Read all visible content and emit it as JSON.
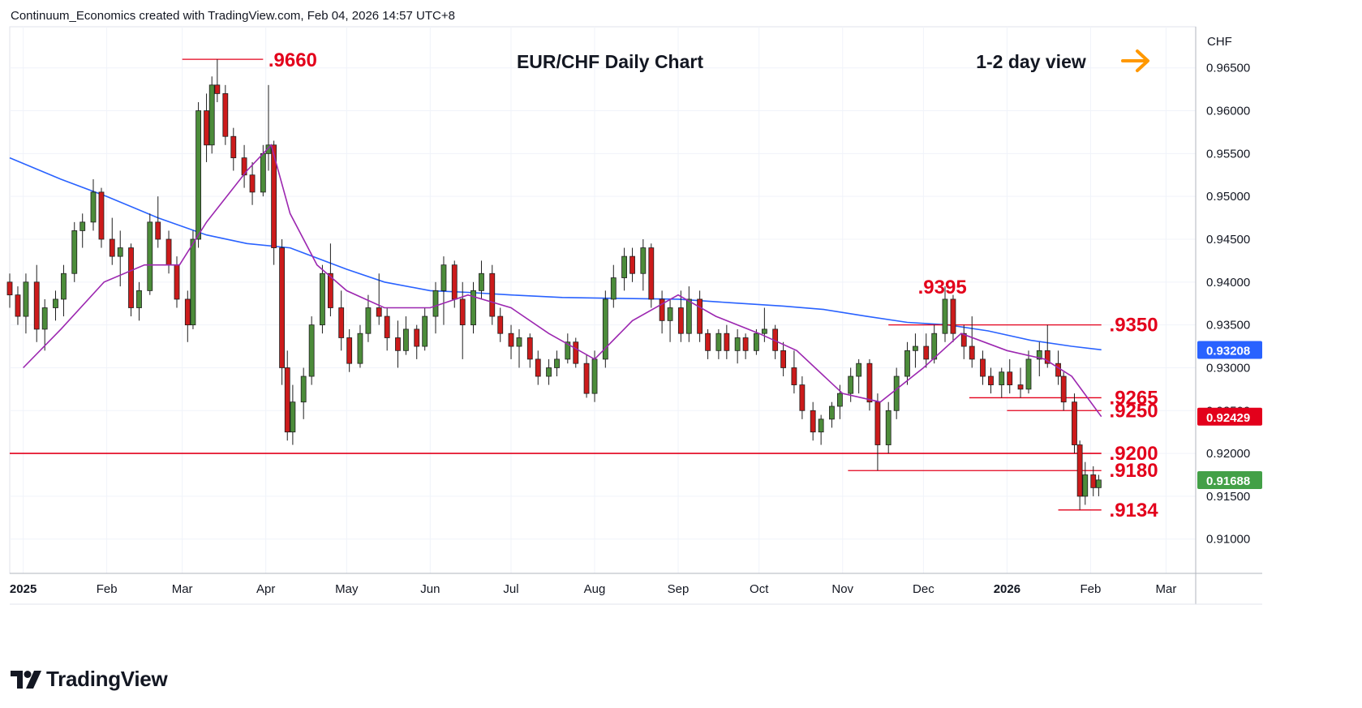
{
  "header": {
    "credit": "Continuum_Economics created with TradingView.com, Feb 04, 2026 14:57 UTC+8"
  },
  "footer": {
    "brand": "TradingView"
  },
  "colors": {
    "bull": "#4c8c3a",
    "bear": "#cc1b1b",
    "ma_fast": "#9c27b0",
    "ma_slow": "#2962ff",
    "level": "#e3001b",
    "arrow": "#ff9800",
    "badge": "#2962ff",
    "badge_red": "#e3001b",
    "badge_green": "#43a047"
  },
  "chart_data": {
    "type": "candlestick",
    "title": "EUR/CHF Daily Chart",
    "view_label": "1-2 day view",
    "view_icon": "arrow-right-icon",
    "currency_label": "CHF",
    "x_range": [
      "2024-12-27",
      "2026-03-12"
    ],
    "ylim": [
      0.906,
      0.9698
    ],
    "grid": true,
    "x_ticks": [
      {
        "date": "2025-01-01",
        "label": "2025",
        "bold": true
      },
      {
        "date": "2025-02-01",
        "label": "Feb"
      },
      {
        "date": "2025-03-01",
        "label": "Mar"
      },
      {
        "date": "2025-04-01",
        "label": "Apr"
      },
      {
        "date": "2025-05-01",
        "label": "May"
      },
      {
        "date": "2025-06-01",
        "label": "Jun"
      },
      {
        "date": "2025-07-01",
        "label": "Jul"
      },
      {
        "date": "2025-08-01",
        "label": "Aug"
      },
      {
        "date": "2025-09-01",
        "label": "Sep"
      },
      {
        "date": "2025-10-01",
        "label": "Oct"
      },
      {
        "date": "2025-11-01",
        "label": "Nov"
      },
      {
        "date": "2025-12-01",
        "label": "Dec"
      },
      {
        "date": "2026-01-01",
        "label": "2026",
        "bold": true
      },
      {
        "date": "2026-02-01",
        "label": "Feb"
      },
      {
        "date": "2026-03-01",
        "label": "Mar"
      }
    ],
    "y_ticks": [
      {
        "value": 0.965,
        "label": "0.96500"
      },
      {
        "value": 0.96,
        "label": "0.96000"
      },
      {
        "value": 0.955,
        "label": "0.95500"
      },
      {
        "value": 0.95,
        "label": "0.95000"
      },
      {
        "value": 0.945,
        "label": "0.94500"
      },
      {
        "value": 0.94,
        "label": "0.94000"
      },
      {
        "value": 0.935,
        "label": "0.93500"
      },
      {
        "value": 0.93,
        "label": "0.93000"
      },
      {
        "value": 0.925,
        "label": "0.92500"
      },
      {
        "value": 0.92,
        "label": "0.92000"
      },
      {
        "value": 0.915,
        "label": "0.91500"
      },
      {
        "value": 0.91,
        "label": "0.91000"
      }
    ],
    "price_badges": [
      {
        "value": 0.93208,
        "label": "0.93208",
        "color": "#2962ff"
      },
      {
        "value": 0.92429,
        "label": "0.92429",
        "color": "#e3001b"
      },
      {
        "value": 0.91688,
        "label": "0.91688",
        "color": "#43a047"
      }
    ],
    "levels": [
      {
        "value": 0.966,
        "label": ".9660",
        "from": "2025-03-01",
        "to": "2025-03-31",
        "label_date": "2025-04-11"
      },
      {
        "value": 0.9395,
        "label": ".9395",
        "from": null,
        "to": null,
        "label_date": "2025-12-08"
      },
      {
        "value": 0.935,
        "label": ".9350",
        "from": "2025-11-18",
        "to": "2026-02-05",
        "label_date": "2026-02-17"
      },
      {
        "value": 0.9265,
        "label": ".9265",
        "from": "2025-12-18",
        "to": "2026-02-05",
        "label_date": "2026-02-17"
      },
      {
        "value": 0.925,
        "label": ".9250",
        "from": "2026-01-01",
        "to": "2026-02-05",
        "label_date": "2026-02-17"
      },
      {
        "value": 0.92,
        "label": ".9200",
        "from": "2024-12-27",
        "to": "2026-02-05",
        "label_date": "2026-02-17"
      },
      {
        "value": 0.918,
        "label": ".9180",
        "from": "2025-11-03",
        "to": "2026-02-05",
        "label_date": "2026-02-17"
      },
      {
        "value": 0.9134,
        "label": ".9134",
        "from": "2026-01-20",
        "to": "2026-02-05",
        "label_date": "2026-02-17"
      }
    ],
    "ma_fast": [
      [
        "2025-01-01",
        0.93
      ],
      [
        "2025-01-15",
        0.9345
      ],
      [
        "2025-01-31",
        0.94
      ],
      [
        "2025-02-15",
        0.942
      ],
      [
        "2025-02-28",
        0.942
      ],
      [
        "2025-03-10",
        0.947
      ],
      [
        "2025-03-25",
        0.953
      ],
      [
        "2025-04-03",
        0.956
      ],
      [
        "2025-04-10",
        0.948
      ],
      [
        "2025-04-20",
        0.942
      ],
      [
        "2025-05-01",
        0.939
      ],
      [
        "2025-05-15",
        0.937
      ],
      [
        "2025-06-01",
        0.937
      ],
      [
        "2025-06-15",
        0.9385
      ],
      [
        "2025-07-01",
        0.937
      ],
      [
        "2025-07-15",
        0.934
      ],
      [
        "2025-08-01",
        0.931
      ],
      [
        "2025-08-15",
        0.9355
      ],
      [
        "2025-09-01",
        0.9385
      ],
      [
        "2025-09-15",
        0.936
      ],
      [
        "2025-10-01",
        0.934
      ],
      [
        "2025-10-15",
        0.932
      ],
      [
        "2025-11-01",
        0.927
      ],
      [
        "2025-11-15",
        0.926
      ],
      [
        "2025-12-01",
        0.93
      ],
      [
        "2025-12-15",
        0.934
      ],
      [
        "2026-01-01",
        0.932
      ],
      [
        "2026-01-15",
        0.931
      ],
      [
        "2026-01-25",
        0.929
      ],
      [
        "2026-02-05",
        0.9243
      ]
    ],
    "ma_slow": [
      [
        "2024-12-27",
        0.9545
      ],
      [
        "2025-01-15",
        0.952
      ],
      [
        "2025-02-01",
        0.95
      ],
      [
        "2025-02-20",
        0.9475
      ],
      [
        "2025-03-10",
        0.9455
      ],
      [
        "2025-03-25",
        0.9445
      ],
      [
        "2025-04-10",
        0.944
      ],
      [
        "2025-05-01",
        0.9415
      ],
      [
        "2025-05-15",
        0.94
      ],
      [
        "2025-06-01",
        0.939
      ],
      [
        "2025-06-15",
        0.9388
      ],
      [
        "2025-07-01",
        0.9385
      ],
      [
        "2025-07-20",
        0.9382
      ],
      [
        "2025-08-10",
        0.9381
      ],
      [
        "2025-09-01",
        0.938
      ],
      [
        "2025-09-20",
        0.9376
      ],
      [
        "2025-10-10",
        0.9372
      ],
      [
        "2025-10-25",
        0.9368
      ],
      [
        "2025-11-10",
        0.936
      ],
      [
        "2025-11-25",
        0.9353
      ],
      [
        "2025-12-10",
        0.935
      ],
      [
        "2025-12-25",
        0.9343
      ],
      [
        "2026-01-10",
        0.9332
      ],
      [
        "2026-01-25",
        0.9325
      ],
      [
        "2026-02-05",
        0.9321
      ]
    ],
    "candles": [
      [
        "2024-12-27",
        0.94,
        0.941,
        0.937,
        0.9385
      ],
      [
        "2024-12-30",
        0.9385,
        0.9395,
        0.935,
        0.936
      ],
      [
        "2025-01-02",
        0.936,
        0.941,
        0.934,
        0.94
      ],
      [
        "2025-01-06",
        0.94,
        0.942,
        0.933,
        0.9345
      ],
      [
        "2025-01-09",
        0.9345,
        0.938,
        0.932,
        0.937
      ],
      [
        "2025-01-13",
        0.937,
        0.939,
        0.9355,
        0.938
      ],
      [
        "2025-01-16",
        0.938,
        0.942,
        0.936,
        0.941
      ],
      [
        "2025-01-20",
        0.941,
        0.947,
        0.94,
        0.946
      ],
      [
        "2025-01-23",
        0.946,
        0.948,
        0.944,
        0.947
      ],
      [
        "2025-01-27",
        0.947,
        0.952,
        0.946,
        0.9505
      ],
      [
        "2025-01-30",
        0.9505,
        0.951,
        0.944,
        0.945
      ],
      [
        "2025-02-03",
        0.945,
        0.9475,
        0.942,
        0.943
      ],
      [
        "2025-02-06",
        0.943,
        0.946,
        0.9395,
        0.944
      ],
      [
        "2025-02-10",
        0.944,
        0.9445,
        0.936,
        0.937
      ],
      [
        "2025-02-13",
        0.937,
        0.94,
        0.9355,
        0.939
      ],
      [
        "2025-02-17",
        0.939,
        0.948,
        0.9385,
        0.947
      ],
      [
        "2025-02-20",
        0.947,
        0.95,
        0.944,
        0.945
      ],
      [
        "2025-02-24",
        0.945,
        0.946,
        0.941,
        0.942
      ],
      [
        "2025-02-27",
        0.942,
        0.943,
        0.937,
        0.938
      ],
      [
        "2025-03-03",
        0.938,
        0.939,
        0.933,
        0.935
      ],
      [
        "2025-03-05",
        0.935,
        0.946,
        0.9345,
        0.945
      ],
      [
        "2025-03-07",
        0.945,
        0.961,
        0.944,
        0.96
      ],
      [
        "2025-03-10",
        0.96,
        0.962,
        0.954,
        0.956
      ],
      [
        "2025-03-12",
        0.956,
        0.964,
        0.955,
        0.963
      ],
      [
        "2025-03-14",
        0.963,
        0.966,
        0.961,
        0.962
      ],
      [
        "2025-03-17",
        0.962,
        0.963,
        0.956,
        0.957
      ],
      [
        "2025-03-20",
        0.957,
        0.958,
        0.953,
        0.9545
      ],
      [
        "2025-03-24",
        0.9545,
        0.956,
        0.951,
        0.9525
      ],
      [
        "2025-03-27",
        0.9525,
        0.954,
        0.949,
        0.9505
      ],
      [
        "2025-03-31",
        0.9505,
        0.956,
        0.95,
        0.955
      ],
      [
        "2025-04-02",
        0.955,
        0.963,
        0.953,
        0.956
      ],
      [
        "2025-04-04",
        0.956,
        0.9565,
        0.942,
        0.944
      ],
      [
        "2025-04-07",
        0.944,
        0.945,
        0.928,
        0.93
      ],
      [
        "2025-04-09",
        0.93,
        0.932,
        0.9215,
        0.9225
      ],
      [
        "2025-04-11",
        0.9225,
        0.928,
        0.921,
        0.926
      ],
      [
        "2025-04-15",
        0.926,
        0.93,
        0.924,
        0.929
      ],
      [
        "2025-04-18",
        0.929,
        0.936,
        0.928,
        0.935
      ],
      [
        "2025-04-22",
        0.935,
        0.942,
        0.934,
        0.941
      ],
      [
        "2025-04-25",
        0.941,
        0.9445,
        0.936,
        0.937
      ],
      [
        "2025-04-29",
        0.937,
        0.939,
        0.932,
        0.9335
      ],
      [
        "2025-05-02",
        0.9335,
        0.9345,
        0.9295,
        0.9305
      ],
      [
        "2025-05-06",
        0.9305,
        0.935,
        0.93,
        0.934
      ],
      [
        "2025-05-09",
        0.934,
        0.9385,
        0.933,
        0.937
      ],
      [
        "2025-05-13",
        0.937,
        0.941,
        0.935,
        0.936
      ],
      [
        "2025-05-16",
        0.936,
        0.937,
        0.932,
        0.9335
      ],
      [
        "2025-05-20",
        0.9335,
        0.9355,
        0.93,
        0.932
      ],
      [
        "2025-05-23",
        0.932,
        0.936,
        0.9315,
        0.9345
      ],
      [
        "2025-05-27",
        0.9345,
        0.935,
        0.931,
        0.9325
      ],
      [
        "2025-05-30",
        0.9325,
        0.937,
        0.932,
        0.936
      ],
      [
        "2025-06-03",
        0.936,
        0.94,
        0.934,
        0.939
      ],
      [
        "2025-06-06",
        0.939,
        0.943,
        0.935,
        0.942
      ],
      [
        "2025-06-10",
        0.942,
        0.9425,
        0.937,
        0.938
      ],
      [
        "2025-06-13",
        0.938,
        0.94,
        0.931,
        0.935
      ],
      [
        "2025-06-17",
        0.935,
        0.94,
        0.934,
        0.939
      ],
      [
        "2025-06-20",
        0.939,
        0.9425,
        0.938,
        0.941
      ],
      [
        "2025-06-24",
        0.941,
        0.942,
        0.935,
        0.936
      ],
      [
        "2025-06-27",
        0.936,
        0.937,
        0.933,
        0.934
      ],
      [
        "2025-07-01",
        0.934,
        0.935,
        0.931,
        0.9325
      ],
      [
        "2025-07-04",
        0.9325,
        0.9345,
        0.93,
        0.9335
      ],
      [
        "2025-07-08",
        0.9335,
        0.934,
        0.93,
        0.931
      ],
      [
        "2025-07-11",
        0.931,
        0.932,
        0.928,
        0.929
      ],
      [
        "2025-07-15",
        0.929,
        0.931,
        0.928,
        0.93
      ],
      [
        "2025-07-18",
        0.93,
        0.932,
        0.929,
        0.931
      ],
      [
        "2025-07-22",
        0.931,
        0.934,
        0.9305,
        0.933
      ],
      [
        "2025-07-25",
        0.933,
        0.9335,
        0.93,
        0.9305
      ],
      [
        "2025-07-29",
        0.9305,
        0.9315,
        0.9265,
        0.927
      ],
      [
        "2025-08-01",
        0.927,
        0.932,
        0.926,
        0.931
      ],
      [
        "2025-08-05",
        0.931,
        0.939,
        0.93,
        0.938
      ],
      [
        "2025-08-08",
        0.938,
        0.942,
        0.937,
        0.9405
      ],
      [
        "2025-08-12",
        0.9405,
        0.944,
        0.939,
        0.943
      ],
      [
        "2025-08-15",
        0.943,
        0.944,
        0.94,
        0.941
      ],
      [
        "2025-08-19",
        0.941,
        0.945,
        0.939,
        0.944
      ],
      [
        "2025-08-22",
        0.944,
        0.9445,
        0.937,
        0.938
      ],
      [
        "2025-08-26",
        0.938,
        0.939,
        0.934,
        0.9355
      ],
      [
        "2025-08-29",
        0.9355,
        0.938,
        0.933,
        0.937
      ],
      [
        "2025-09-02",
        0.937,
        0.939,
        0.933,
        0.934
      ],
      [
        "2025-09-05",
        0.934,
        0.9395,
        0.933,
        0.938
      ],
      [
        "2025-09-09",
        0.938,
        0.939,
        0.933,
        0.934
      ],
      [
        "2025-09-12",
        0.934,
        0.9345,
        0.931,
        0.932
      ],
      [
        "2025-09-16",
        0.932,
        0.9345,
        0.931,
        0.934
      ],
      [
        "2025-09-19",
        0.934,
        0.935,
        0.931,
        0.932
      ],
      [
        "2025-09-23",
        0.932,
        0.9345,
        0.9305,
        0.9335
      ],
      [
        "2025-09-26",
        0.9335,
        0.934,
        0.931,
        0.932
      ],
      [
        "2025-09-30",
        0.932,
        0.9345,
        0.9315,
        0.934
      ],
      [
        "2025-10-03",
        0.934,
        0.937,
        0.933,
        0.9345
      ],
      [
        "2025-10-07",
        0.9345,
        0.935,
        0.931,
        0.932
      ],
      [
        "2025-10-10",
        0.932,
        0.933,
        0.929,
        0.93
      ],
      [
        "2025-10-14",
        0.93,
        0.932,
        0.927,
        0.928
      ],
      [
        "2025-10-17",
        0.928,
        0.929,
        0.924,
        0.925
      ],
      [
        "2025-10-21",
        0.925,
        0.926,
        0.9215,
        0.9225
      ],
      [
        "2025-10-24",
        0.9225,
        0.9245,
        0.921,
        0.924
      ],
      [
        "2025-10-28",
        0.924,
        0.926,
        0.923,
        0.9255
      ],
      [
        "2025-10-31",
        0.9255,
        0.928,
        0.924,
        0.927
      ],
      [
        "2025-11-04",
        0.927,
        0.93,
        0.926,
        0.929
      ],
      [
        "2025-11-07",
        0.929,
        0.931,
        0.927,
        0.9305
      ],
      [
        "2025-11-11",
        0.9305,
        0.931,
        0.925,
        0.926
      ],
      [
        "2025-11-14",
        0.926,
        0.927,
        0.918,
        0.921
      ],
      [
        "2025-11-18",
        0.921,
        0.926,
        0.92,
        0.925
      ],
      [
        "2025-11-21",
        0.925,
        0.93,
        0.924,
        0.929
      ],
      [
        "2025-11-25",
        0.929,
        0.933,
        0.928,
        0.932
      ],
      [
        "2025-11-28",
        0.932,
        0.934,
        0.93,
        0.9325
      ],
      [
        "2025-12-02",
        0.9325,
        0.934,
        0.93,
        0.931
      ],
      [
        "2025-12-05",
        0.931,
        0.935,
        0.9305,
        0.934
      ],
      [
        "2025-12-09",
        0.934,
        0.9395,
        0.933,
        0.938
      ],
      [
        "2025-12-12",
        0.938,
        0.9385,
        0.933,
        0.934
      ],
      [
        "2025-12-16",
        0.934,
        0.935,
        0.931,
        0.9325
      ],
      [
        "2025-12-19",
        0.9325,
        0.936,
        0.93,
        0.931
      ],
      [
        "2025-12-23",
        0.931,
        0.932,
        0.928,
        0.929
      ],
      [
        "2025-12-26",
        0.929,
        0.93,
        0.927,
        0.928
      ],
      [
        "2025-12-30",
        0.928,
        0.93,
        0.9265,
        0.9295
      ],
      [
        "2026-01-02",
        0.9295,
        0.931,
        0.927,
        0.928
      ],
      [
        "2026-01-06",
        0.928,
        0.93,
        0.9265,
        0.9275
      ],
      [
        "2026-01-09",
        0.9275,
        0.932,
        0.927,
        0.931
      ],
      [
        "2026-01-13",
        0.931,
        0.933,
        0.929,
        0.932
      ],
      [
        "2026-01-16",
        0.932,
        0.935,
        0.93,
        0.9305
      ],
      [
        "2026-01-20",
        0.9305,
        0.932,
        0.928,
        0.929
      ],
      [
        "2026-01-22",
        0.929,
        0.9295,
        0.925,
        0.926
      ],
      [
        "2026-01-26",
        0.926,
        0.927,
        0.92,
        0.921
      ],
      [
        "2026-01-28",
        0.921,
        0.9215,
        0.9134,
        0.915
      ],
      [
        "2026-01-30",
        0.915,
        0.919,
        0.914,
        0.9175
      ],
      [
        "2026-02-02",
        0.9175,
        0.9185,
        0.915,
        0.916
      ],
      [
        "2026-02-04",
        0.916,
        0.9175,
        0.915,
        0.9169
      ]
    ]
  }
}
